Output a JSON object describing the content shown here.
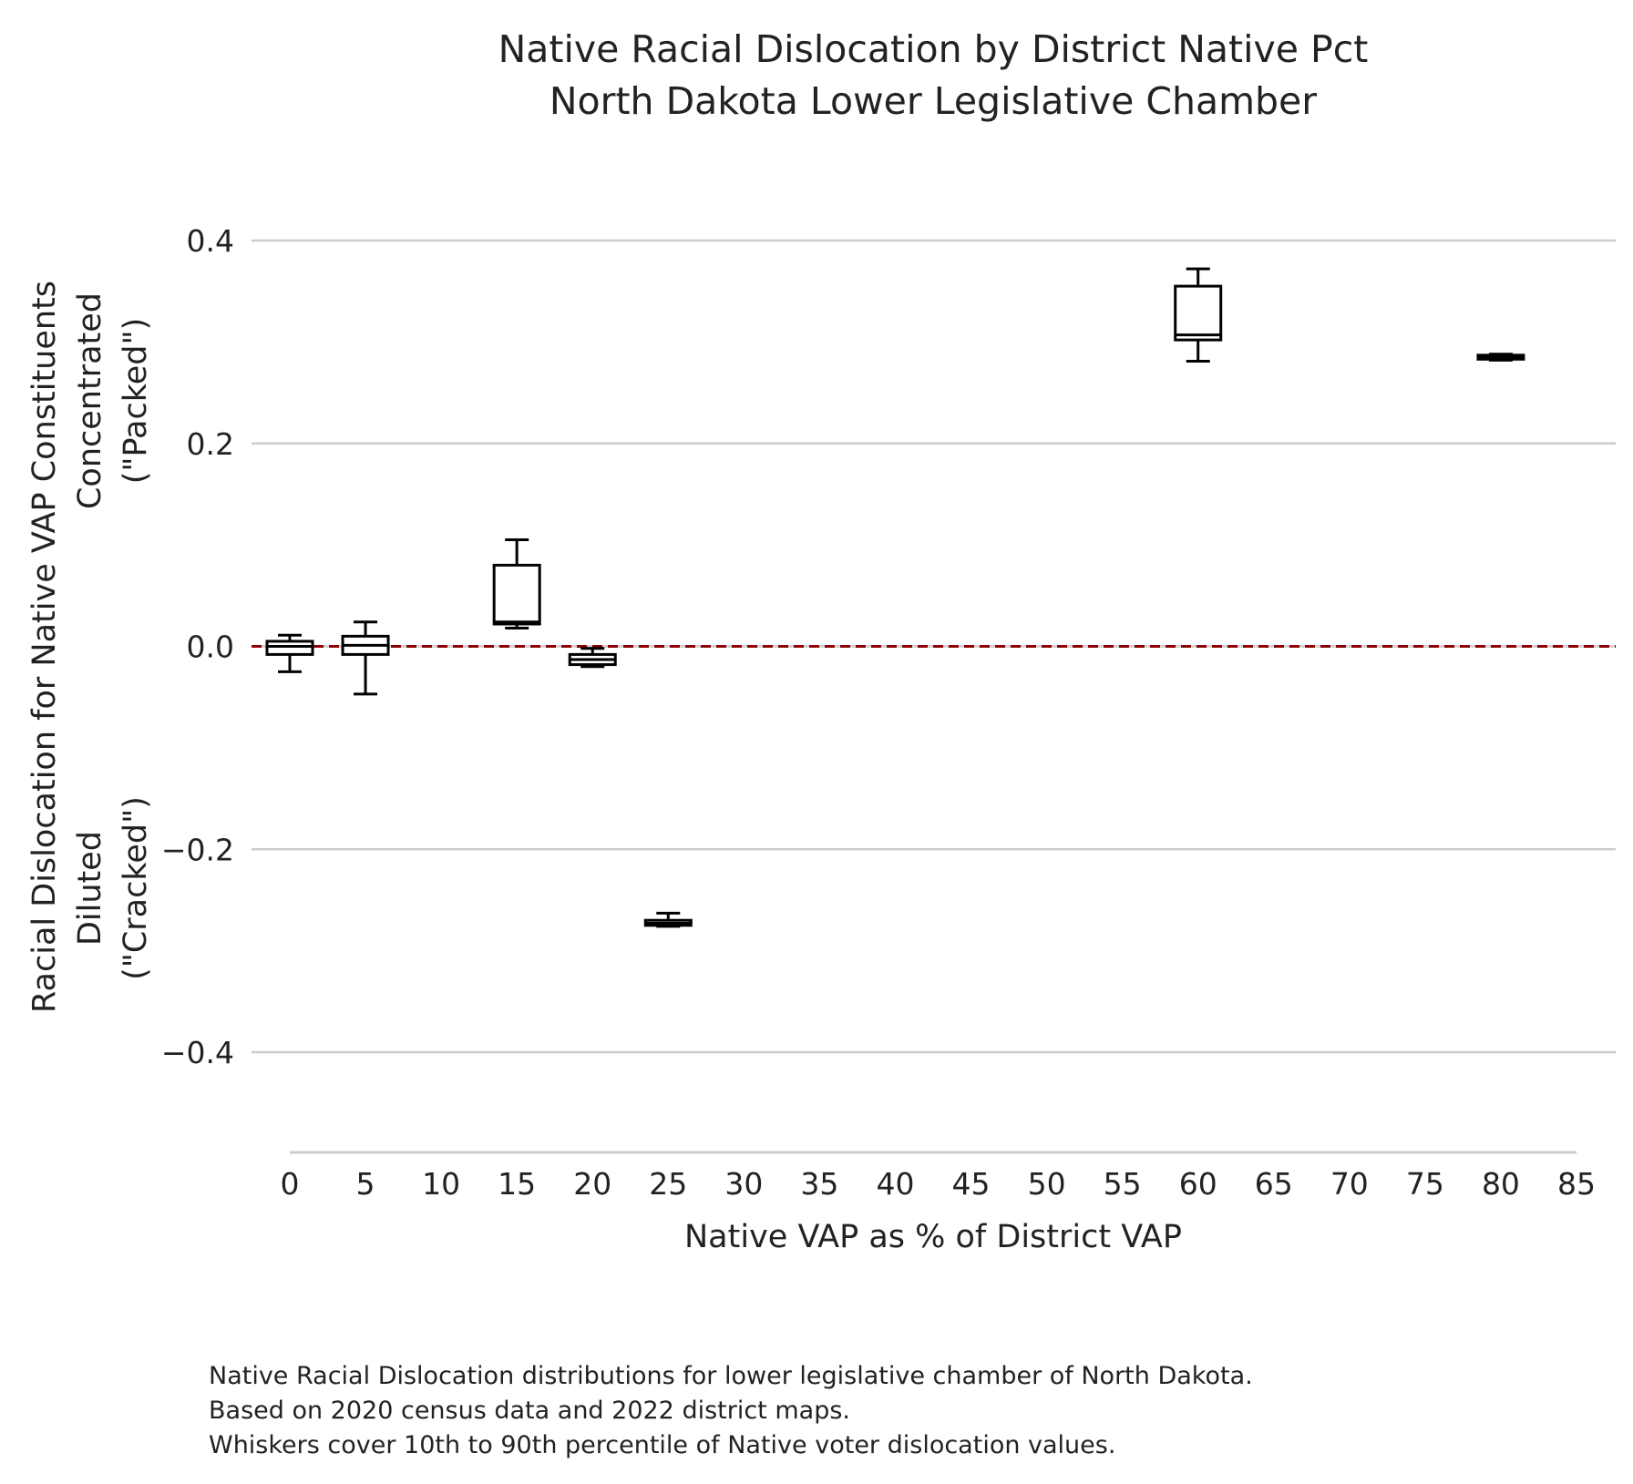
{
  "chart_data": {
    "type": "box",
    "title": [
      "Native Racial Dislocation by District Native Pct",
      "North Dakota Lower Legislative Chamber"
    ],
    "xlabel": "Native VAP as % of District VAP",
    "ylabel": [
      "Racial Dislocation for Native VAP Constituents",
      "Concentrated",
      "(\"Packed\")",
      "Diluted",
      "(\"Cracked\")"
    ],
    "xlim": [
      0,
      85
    ],
    "ylim": [
      -0.5,
      0.45
    ],
    "x_ticks": [
      0,
      5,
      10,
      15,
      20,
      25,
      30,
      35,
      40,
      45,
      50,
      55,
      60,
      65,
      70,
      75,
      80,
      85
    ],
    "x_tick_labels": [
      "0",
      "5",
      "10",
      "15",
      "20",
      "25",
      "30",
      "35",
      "40",
      "45",
      "50",
      "55",
      "60",
      "65",
      "70",
      "75",
      "80",
      "85"
    ],
    "y_ticks": [
      -0.4,
      -0.2,
      0.0,
      0.2,
      0.4
    ],
    "y_tick_labels": [
      "−0.4",
      "−0.2",
      "0.0",
      "0.2",
      "0.4"
    ],
    "grid": "horizontal",
    "reference_line": {
      "y": 0.0,
      "style": "dashed",
      "color": "#8b0000"
    },
    "boxes": [
      {
        "x": 0,
        "whisker_low": -0.025,
        "q1": -0.008,
        "median": 0.0,
        "q3": 0.005,
        "whisker_high": 0.011
      },
      {
        "x": 5,
        "whisker_low": -0.047,
        "q1": -0.008,
        "median": 0.001,
        "q3": 0.01,
        "whisker_high": 0.024
      },
      {
        "x": 15,
        "whisker_low": 0.018,
        "q1": 0.022,
        "median": 0.024,
        "q3": 0.08,
        "whisker_high": 0.105
      },
      {
        "x": 20,
        "whisker_low": -0.02,
        "q1": -0.018,
        "median": -0.013,
        "q3": -0.008,
        "whisker_high": -0.002
      },
      {
        "x": 25,
        "whisker_low": -0.276,
        "q1": -0.275,
        "median": -0.273,
        "q3": -0.27,
        "whisker_high": -0.263
      },
      {
        "x": 60,
        "whisker_low": 0.281,
        "q1": 0.302,
        "median": 0.307,
        "q3": 0.355,
        "whisker_high": 0.372
      },
      {
        "x": 80,
        "whisker_low": 0.282,
        "q1": 0.283,
        "median": 0.285,
        "q3": 0.287,
        "whisker_high": 0.288
      }
    ],
    "box_color": "#000000",
    "grid_color": "#cccccc"
  },
  "caption": [
    "Native Racial Dislocation distributions for lower legislative chamber of North Dakota.",
    "Based on 2020 census data and 2022 district maps.",
    "Whiskers cover 10th to 90th percentile of Native voter dislocation values."
  ]
}
